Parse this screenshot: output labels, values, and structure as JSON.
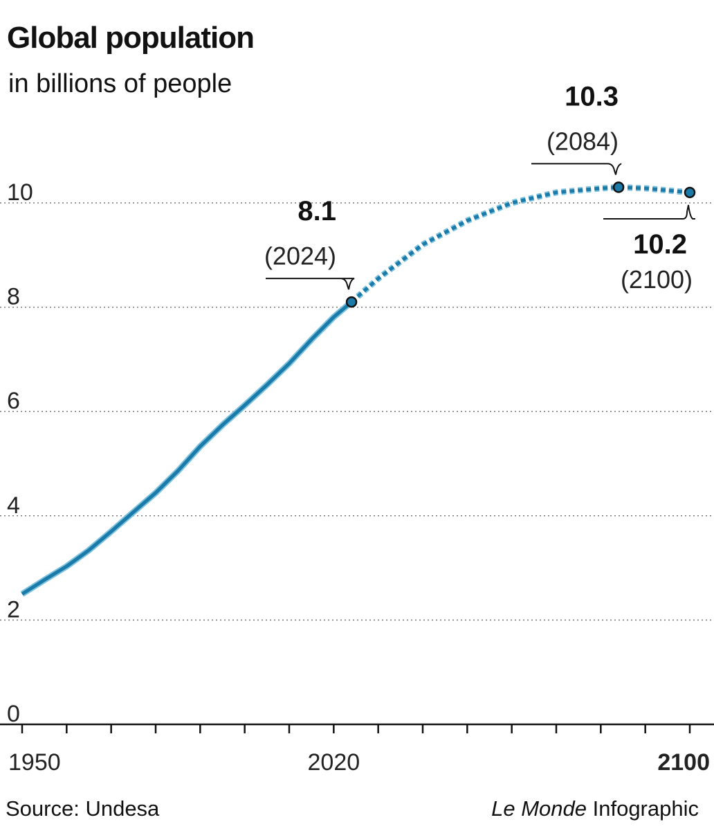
{
  "chart_data": {
    "type": "line",
    "title": "Global population",
    "subtitle": "in billions of people",
    "ylim": [
      0,
      10.5
    ],
    "y_ticks": [
      "0",
      "2",
      "4",
      "6",
      "8",
      "10"
    ],
    "xlim": [
      1950,
      2100
    ],
    "x_tick_labels": [
      {
        "value": 1950,
        "label": "1950",
        "bold": false
      },
      {
        "value": 2020,
        "label": "2020",
        "bold": false
      },
      {
        "value": 2100,
        "label": "2100",
        "bold": true
      }
    ],
    "x_minor_ticks": [
      1950,
      1960,
      1970,
      1980,
      1990,
      2000,
      2010,
      2020,
      2030,
      2040,
      2050,
      2060,
      2070,
      2080,
      2090,
      2100
    ],
    "grid": "horizontal dotted",
    "series": [
      {
        "style": "solid",
        "color": "#1a7aa8",
        "x": [
          1950,
          1955,
          1960,
          1965,
          1970,
          1975,
          1980,
          1985,
          1990,
          1995,
          2000,
          2005,
          2010,
          2015,
          2020,
          2024
        ],
        "y": [
          2.5,
          2.77,
          3.03,
          3.34,
          3.7,
          4.07,
          4.44,
          4.86,
          5.33,
          5.74,
          6.12,
          6.51,
          6.92,
          7.38,
          7.81,
          8.1
        ]
      },
      {
        "style": "dotted",
        "color": "#1a7aa8",
        "x": [
          2024,
          2030,
          2040,
          2050,
          2060,
          2070,
          2080,
          2084,
          2090,
          2100
        ],
        "y": [
          8.1,
          8.55,
          9.2,
          9.66,
          10.0,
          10.2,
          10.28,
          10.3,
          10.28,
          10.2
        ]
      }
    ],
    "annotations": [
      {
        "x": 2024,
        "y": 8.1,
        "value": "8.1",
        "label": "(2024)"
      },
      {
        "x": 2084,
        "y": 10.3,
        "value": "10.3",
        "label": "(2084)"
      },
      {
        "x": 2100,
        "y": 10.2,
        "value": "10.2",
        "label": "(2100)"
      }
    ]
  },
  "footer": {
    "source": "Source: Undesa",
    "brand": "Le Monde",
    "credit": " Infographic"
  }
}
